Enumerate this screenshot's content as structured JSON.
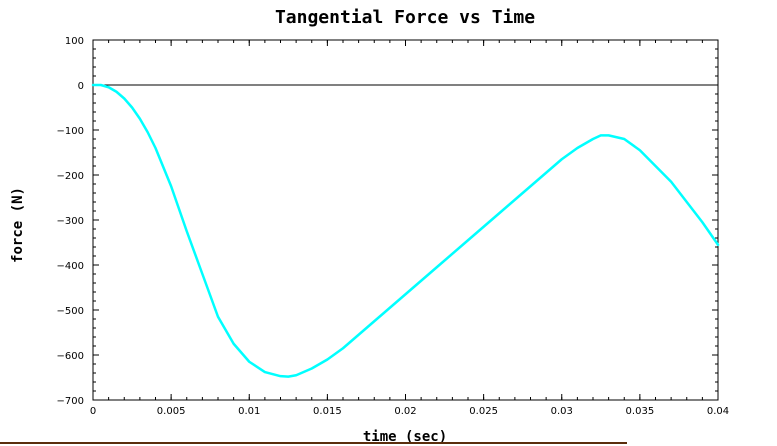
{
  "chart_data": {
    "type": "line",
    "title": "Tangential Force vs Time",
    "xlabel": "time (sec)",
    "ylabel": "force (N)",
    "xlim": [
      0,
      0.04
    ],
    "ylim": [
      -700,
      100
    ],
    "x_ticks": [
      0,
      0.005,
      0.01,
      0.015,
      0.02,
      0.025,
      0.03,
      0.035,
      0.04
    ],
    "x_tick_labels": [
      "0",
      "0.005",
      "0.01",
      "0.015",
      "0.02",
      "0.025",
      "0.03",
      "0.035",
      "0.04"
    ],
    "y_ticks": [
      100,
      0,
      -100,
      -200,
      -300,
      -400,
      -500,
      -600,
      -700
    ],
    "y_tick_labels": [
      "100",
      "0",
      "−100",
      "−200",
      "−300",
      "−400",
      "−500",
      "−600",
      "−700"
    ],
    "zero_line": 0,
    "grid": false,
    "series": [
      {
        "color": "#00ffff",
        "x": [
          0,
          0.0005,
          0.001,
          0.0015,
          0.002,
          0.0025,
          0.003,
          0.0035,
          0.004,
          0.005,
          0.006,
          0.007,
          0.008,
          0.009,
          0.01,
          0.011,
          0.012,
          0.0125,
          0.013,
          0.014,
          0.015,
          0.016,
          0.018,
          0.02,
          0.022,
          0.024,
          0.026,
          0.028,
          0.03,
          0.031,
          0.032,
          0.0325,
          0.033,
          0.034,
          0.035,
          0.036,
          0.037,
          0.038,
          0.039,
          0.04
        ],
        "y": [
          0,
          0,
          -5,
          -15,
          -30,
          -50,
          -75,
          -105,
          -140,
          -225,
          -325,
          -420,
          -515,
          -575,
          -615,
          -638,
          -647,
          -648,
          -645,
          -630,
          -610,
          -585,
          -525,
          -465,
          -405,
          -345,
          -285,
          -225,
          -165,
          -140,
          -120,
          -112,
          -112,
          -120,
          -145,
          -180,
          -215,
          -260,
          -305,
          -355
        ]
      }
    ]
  },
  "decor": {
    "bottom_rule_color": "#5a2d0c"
  }
}
